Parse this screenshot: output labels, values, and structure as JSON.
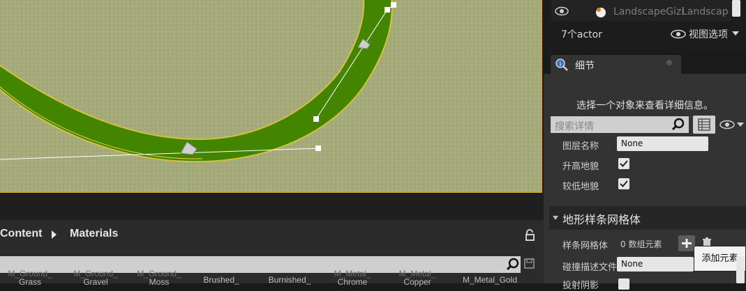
{
  "viewport": {
    "label": "3D viewport - landscape spline"
  },
  "outliner": {
    "row_label": "LandscapeGizi",
    "row_type": "Landscap",
    "actor_count": "7个actor",
    "view_options": "视图选项"
  },
  "details": {
    "tab_label": "细节",
    "select_hint": "选择一个对象来查看详细信息。",
    "search_placeholder": "搜索详情",
    "properties": [
      {
        "label": "图层名称",
        "value": "None"
      },
      {
        "label": "升高地貌",
        "checked": true
      },
      {
        "label": "较低地貌",
        "checked": true
      }
    ],
    "category": "地形样条网格体",
    "spline_mesh_label": "样条网格体",
    "spline_mesh_count": "0 数组元素",
    "collision_label": "碰撞描述文件",
    "collision_value": "None",
    "cast_shadow_label": "投射阴影",
    "tooltip": "添加元素"
  },
  "content_browser": {
    "crumbs": [
      "Content",
      "Materials"
    ],
    "search_value": "",
    "assets": [
      {
        "name": "M_Ground_\nGrass",
        "left": "M_Ground_",
        "sub": "Grass"
      },
      {
        "name": "M_Ground_\nGravel",
        "left": "M_Ground_",
        "sub": "Gravel"
      },
      {
        "name": "M_Ground_\nMoss",
        "left": "M_Ground_",
        "sub": "Moss"
      },
      {
        "name": "Brushed_",
        "left": "Brushed_",
        "sub": ""
      },
      {
        "name": "Burnished_",
        "left": "Burnished_",
        "sub": ""
      },
      {
        "name": "M_Metal_\nChrome",
        "left": "M_Metal_",
        "sub": "Chrome"
      },
      {
        "name": "M_Metal_\nCopper",
        "left": "M_Metal_",
        "sub": "Copper"
      },
      {
        "name": "M_Metal_Gold",
        "left": "M_Metal_Gold",
        "sub": ""
      }
    ]
  },
  "colors": {
    "grass": "#a3a979",
    "spline_road": "#438400",
    "road_edge": "#d6c23a",
    "viewport_border": "#c8a82a"
  }
}
